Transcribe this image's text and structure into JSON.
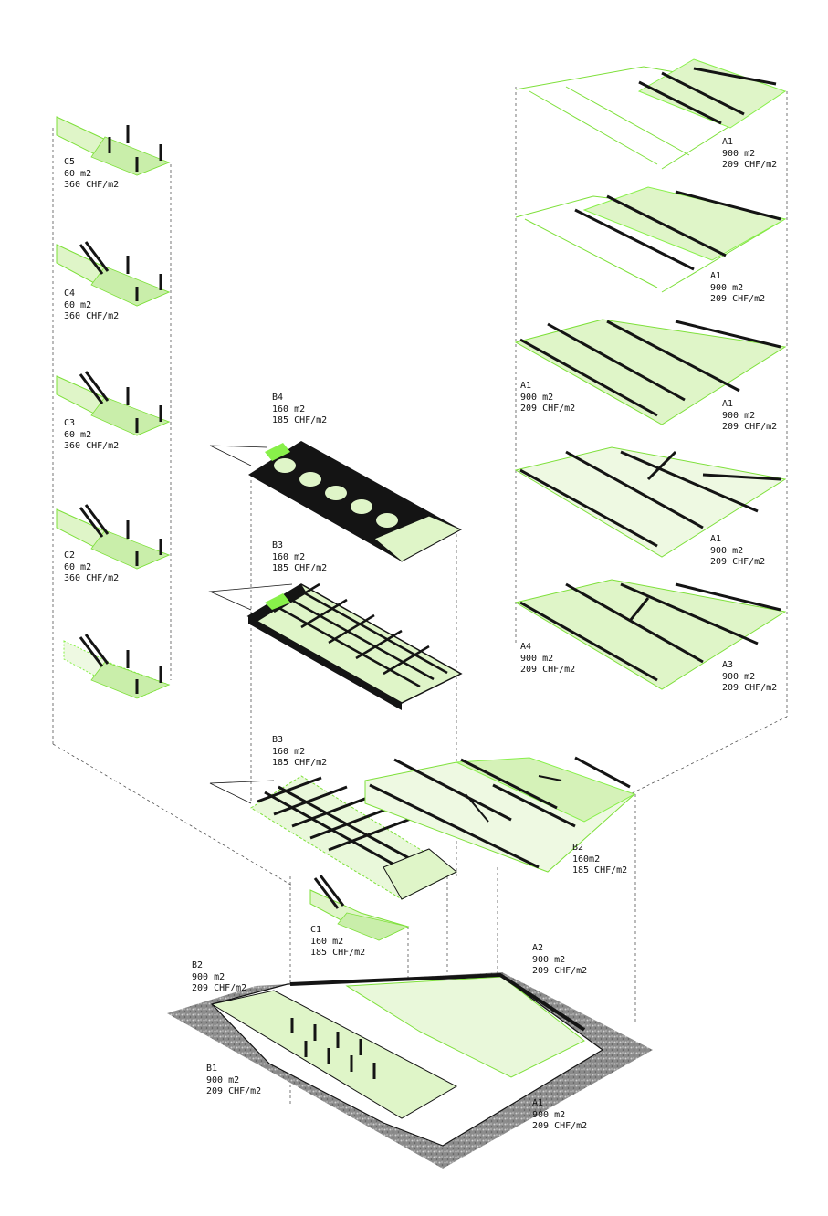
{
  "palette": {
    "green_fill": "#dff5c8",
    "green_line": "#7ee03a",
    "green_bright": "#88f04a",
    "black": "#141414",
    "gray_ground": "#9a9a9a",
    "dash": "#555555"
  },
  "labels": [
    {
      "id": "C5",
      "name": "C5",
      "area": "60 m2",
      "price": "360 CHF/m2"
    },
    {
      "id": "C4",
      "name": "C4",
      "area": "60 m2",
      "price": "360 CHF/m2"
    },
    {
      "id": "C3",
      "name": "C3",
      "area": "60 m2",
      "price": "360 CHF/m2"
    },
    {
      "id": "C2",
      "name": "C2",
      "area": "60 m2",
      "price": "360 CHF/m2"
    },
    {
      "id": "B4",
      "name": "B4",
      "area": "160 m2",
      "price": "185 CHF/m2"
    },
    {
      "id": "B3a",
      "name": "B3",
      "area": "160 m2",
      "price": "185 CHF/m2"
    },
    {
      "id": "B3b",
      "name": "B3",
      "area": "160 m2",
      "price": "185 CHF/m2"
    },
    {
      "id": "C1",
      "name": "C1",
      "area": "160 m2",
      "price": "185 CHF/m2"
    },
    {
      "id": "B2top",
      "name": "B2",
      "area": "160m2",
      "price": "185 CHF/m2"
    },
    {
      "id": "A1_5",
      "name": "A1",
      "area": "900 m2",
      "price": "209 CHF/m2"
    },
    {
      "id": "A1_4",
      "name": "A1",
      "area": "900 m2",
      "price": "209 CHF/m2"
    },
    {
      "id": "A1_3L",
      "name": "A1",
      "area": "900 m2",
      "price": "209 CHF/m2"
    },
    {
      "id": "A1_3R",
      "name": "A1",
      "area": "900 m2",
      "price": "209 CHF/m2"
    },
    {
      "id": "A1_2",
      "name": "A1",
      "area": "900 m2",
      "price": "209 CHF/m2"
    },
    {
      "id": "A4",
      "name": "A4",
      "area": "900 m2",
      "price": "209 CHF/m2"
    },
    {
      "id": "A3",
      "name": "A3",
      "area": "900 m2",
      "price": "209 CHF/m2"
    },
    {
      "id": "B2base",
      "name": "B2",
      "area": "900 m2",
      "price": "209 CHF/m2"
    },
    {
      "id": "A2",
      "name": "A2",
      "area": "900 m2",
      "price": "209 CHF/m2"
    },
    {
      "id": "B1",
      "name": "B1",
      "area": "900 m2",
      "price": "209 CHF/m2"
    },
    {
      "id": "A1base",
      "name": "A1",
      "area": "900 m2",
      "price": "209 CHF/m2"
    }
  ]
}
